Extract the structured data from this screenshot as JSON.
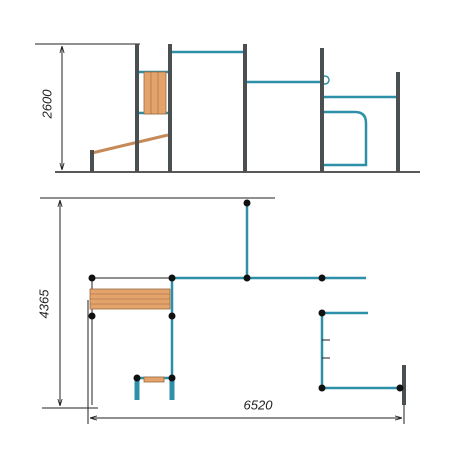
{
  "dimensions": {
    "height": 2600,
    "depth": 4365,
    "width": 6520
  }
}
